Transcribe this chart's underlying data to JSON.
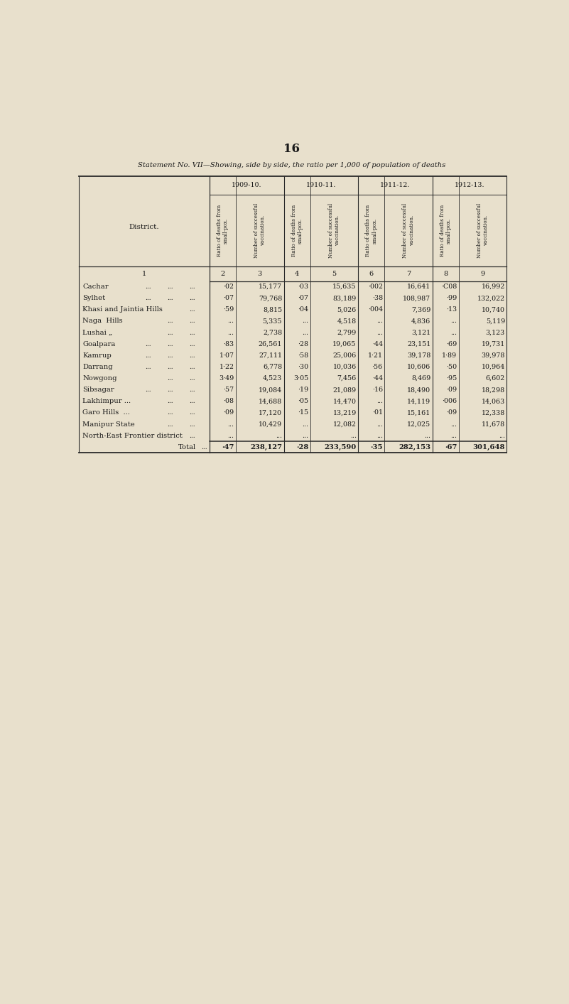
{
  "page_number": "16",
  "title": "Statement No. VII—Showing, side by side, the ratio per 1,000 of population of deaths",
  "bg_color": "#e8e0cc",
  "years": [
    "1909-10.",
    "1910-11.",
    "1911-12.",
    "1912-13."
  ],
  "col_numbers": [
    "2",
    "3",
    "4",
    "5",
    "6",
    "7",
    "8",
    "9"
  ],
  "district_label": "District.",
  "col1_label": "1",
  "rows": [
    {
      "district": "Cachar",
      "extra_dots": [
        "...",
        "...",
        "..."
      ],
      "vals": [
        "·02",
        "15,177",
        "·03",
        "15,635",
        "·002",
        "16,641",
        "·C08",
        "16,992"
      ]
    },
    {
      "district": "Sylhet",
      "extra_dots": [
        "...",
        "...",
        "..."
      ],
      "vals": [
        "·07",
        "79,768",
        "·07",
        "83,189",
        "·38",
        "108,987",
        "·99",
        "132,022"
      ]
    },
    {
      "district": "Khasi and Jaintia Hills",
      "extra_dots": [
        "..."
      ],
      "vals": [
        "·59",
        "8,815",
        "·04",
        "5,026",
        "·004",
        "7,369",
        "·13",
        "10,740"
      ]
    },
    {
      "district": "Naga  Hills",
      "extra_dots": [
        "...",
        "..."
      ],
      "vals": [
        "...",
        "5,335",
        "...",
        "4,518",
        "...",
        "4,836",
        "...",
        "5,119"
      ]
    },
    {
      "district": "Lushai „",
      "extra_dots": [
        "...",
        "..."
      ],
      "vals": [
        "...",
        "2,738",
        "...",
        "2,799",
        "...",
        "3,121",
        "...",
        "3,123"
      ]
    },
    {
      "district": "Goalpara",
      "extra_dots": [
        "...",
        "...",
        "..."
      ],
      "vals": [
        "·83",
        "26,561",
        "·28",
        "19,065",
        "·44",
        "23,151",
        "·69",
        "19,731"
      ]
    },
    {
      "district": "Kamrup",
      "extra_dots": [
        "...",
        "...",
        "..."
      ],
      "vals": [
        "1·07",
        "27,111",
        "·58",
        "25,006",
        "1·21",
        "39,178",
        "1·89",
        "39,978"
      ]
    },
    {
      "district": "Darrang",
      "extra_dots": [
        "...",
        "...",
        "..."
      ],
      "vals": [
        "1·22",
        "6,778",
        "·30",
        "10,036",
        "·56",
        "10,606",
        "·50",
        "10,964"
      ]
    },
    {
      "district": "Nowgong",
      "extra_dots": [
        "...",
        "..."
      ],
      "vals": [
        "3·49",
        "4,523",
        "3·05",
        "7,456",
        "·44",
        "8,469",
        "·95",
        "6,602"
      ]
    },
    {
      "district": "Sibsagar",
      "extra_dots": [
        "...",
        "...",
        "..."
      ],
      "vals": [
        "·57",
        "19,084",
        "·19",
        "21,089",
        "·16",
        "18,490",
        "·09",
        "18,298"
      ]
    },
    {
      "district": "Lakhimpur ...",
      "extra_dots": [
        "...",
        "..."
      ],
      "vals": [
        "·08",
        "14,688",
        "·05",
        "14,470",
        "...",
        "14,119",
        "·006",
        "14,063"
      ]
    },
    {
      "district": "Garo Hills  ...",
      "extra_dots": [
        "...",
        "..."
      ],
      "vals": [
        "·09",
        "17,120",
        "·15",
        "13,219",
        "·01",
        "15,161",
        "·09",
        "12,338"
      ]
    },
    {
      "district": "Manipur State",
      "extra_dots": [
        "...",
        "..."
      ],
      "vals": [
        "...",
        "10,429",
        "...",
        "12,082",
        "...",
        "12,025",
        "...",
        "11,678"
      ]
    },
    {
      "district": "North-East Frontier district",
      "extra_dots": [
        "..."
      ],
      "vals": [
        "...",
        "...",
        "...",
        "...",
        "...",
        "...",
        "...",
        "..."
      ]
    }
  ],
  "total_row": {
    "district": "Total",
    "extra_dots": [
      "..."
    ],
    "vals": [
      "·47",
      "238,127",
      "·28",
      "233,590",
      "·35",
      "282,153",
      "·67",
      "301,648"
    ]
  }
}
